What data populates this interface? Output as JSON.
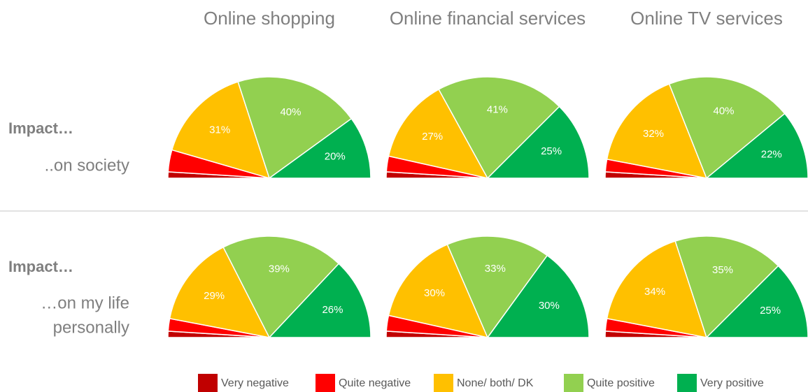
{
  "chart_data": {
    "type": "pie",
    "half": true,
    "columns": [
      "Online shopping",
      "Online financial services",
      "Online TV services"
    ],
    "categories": [
      "Very negative",
      "Quite negative",
      "None/ both/ DK",
      "Quite positive",
      "Very positive"
    ],
    "colors": [
      "#c00000",
      "#ff0000",
      "#ffc000",
      "#92d050",
      "#00b050"
    ],
    "rows": [
      {
        "title": "Impact…",
        "subtitle": [
          "..on society"
        ],
        "charts": [
          {
            "values": [
              2,
              7,
              31,
              40,
              20
            ],
            "value_labels": [
              null,
              null,
              "31%",
              "40%",
              "20%"
            ]
          },
          {
            "values": [
              2,
              5,
              27,
              41,
              25
            ],
            "value_labels": [
              null,
              null,
              "27%",
              "41%",
              "25%"
            ]
          },
          {
            "values": [
              2,
              4,
              32,
              40,
              22
            ],
            "value_labels": [
              null,
              null,
              "32%",
              "40%",
              "22%"
            ]
          }
        ]
      },
      {
        "title": "Impact…",
        "subtitle": [
          "…on my life",
          "personally"
        ],
        "charts": [
          {
            "values": [
              2,
              4,
              29,
              39,
              26
            ],
            "value_labels": [
              null,
              null,
              "29%",
              "39%",
              "26%"
            ]
          },
          {
            "values": [
              2,
              5,
              30,
              33,
              30
            ],
            "value_labels": [
              null,
              null,
              "30%",
              "33%",
              "30%"
            ]
          },
          {
            "values": [
              2,
              4,
              34,
              35,
              25
            ],
            "value_labels": [
              null,
              null,
              "34%",
              "35%",
              "25%"
            ]
          }
        ]
      }
    ]
  }
}
